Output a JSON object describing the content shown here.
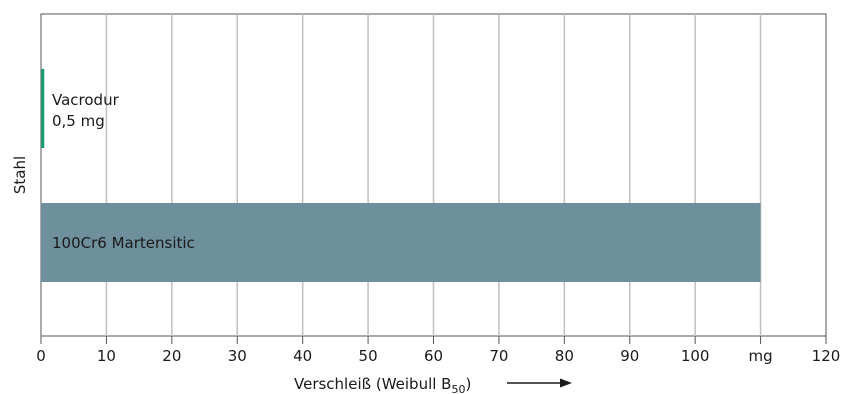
{
  "chart_data": {
    "type": "bar",
    "orientation": "horizontal",
    "title": "",
    "ylabel": "Stahl",
    "xlabel": "Verschleiß (Weibull B",
    "xlabel_subscript": "50",
    "xlabel_suffix": ")",
    "xlim": [
      0,
      120
    ],
    "x_ticks": [
      0,
      10,
      20,
      30,
      40,
      50,
      60,
      70,
      80,
      90,
      100,
      110,
      120
    ],
    "x_tick_labels": [
      "0",
      "10",
      "20",
      "30",
      "40",
      "50",
      "60",
      "70",
      "80",
      "90",
      "100",
      "mg",
      "120"
    ],
    "grid": true,
    "bars": [
      {
        "category": "Vacrodur",
        "label_line1": "Vacrodur",
        "label_line2": "0,5 mg",
        "value": 0.5,
        "color": "#1a9a6e"
      },
      {
        "category": "100Cr6 Martensitic",
        "label_line1": "100Cr6 Martensitic",
        "value": 110,
        "color": "#6e909c"
      }
    ]
  }
}
